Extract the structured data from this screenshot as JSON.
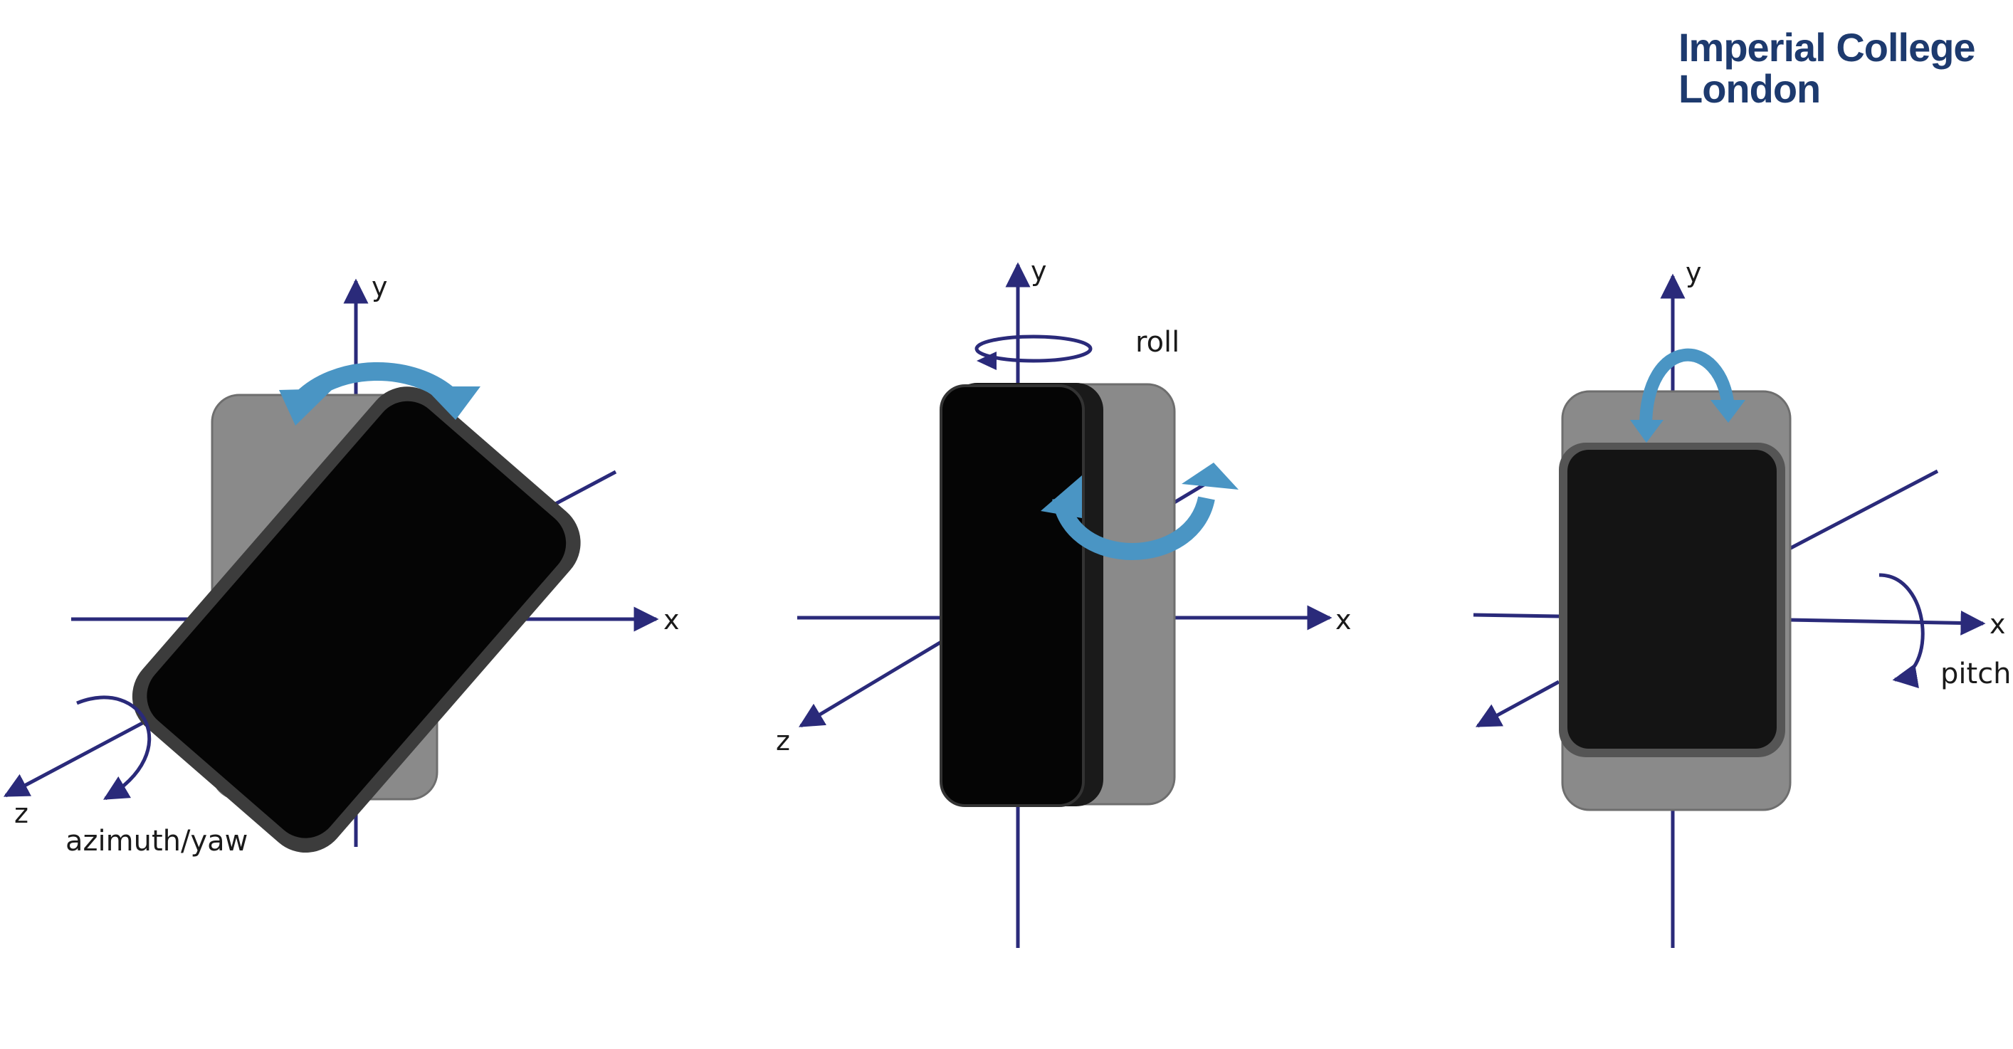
{
  "logo": {
    "line1": "Imperial College",
    "line2": "London"
  },
  "axis_labels": {
    "x": "x",
    "y": "y",
    "z": "z"
  },
  "panels": [
    {
      "rotation_label": "azimuth/yaw"
    },
    {
      "rotation_label": "roll"
    },
    {
      "rotation_label": "pitch"
    }
  ],
  "colors": {
    "axis": "#2a2a7a",
    "arrow": "#4a95c4",
    "device_screen": "#050505",
    "device_bezel": "#3a3a3a",
    "device_shadow": "#8a8a8a",
    "logo": "#1d3a6e"
  }
}
